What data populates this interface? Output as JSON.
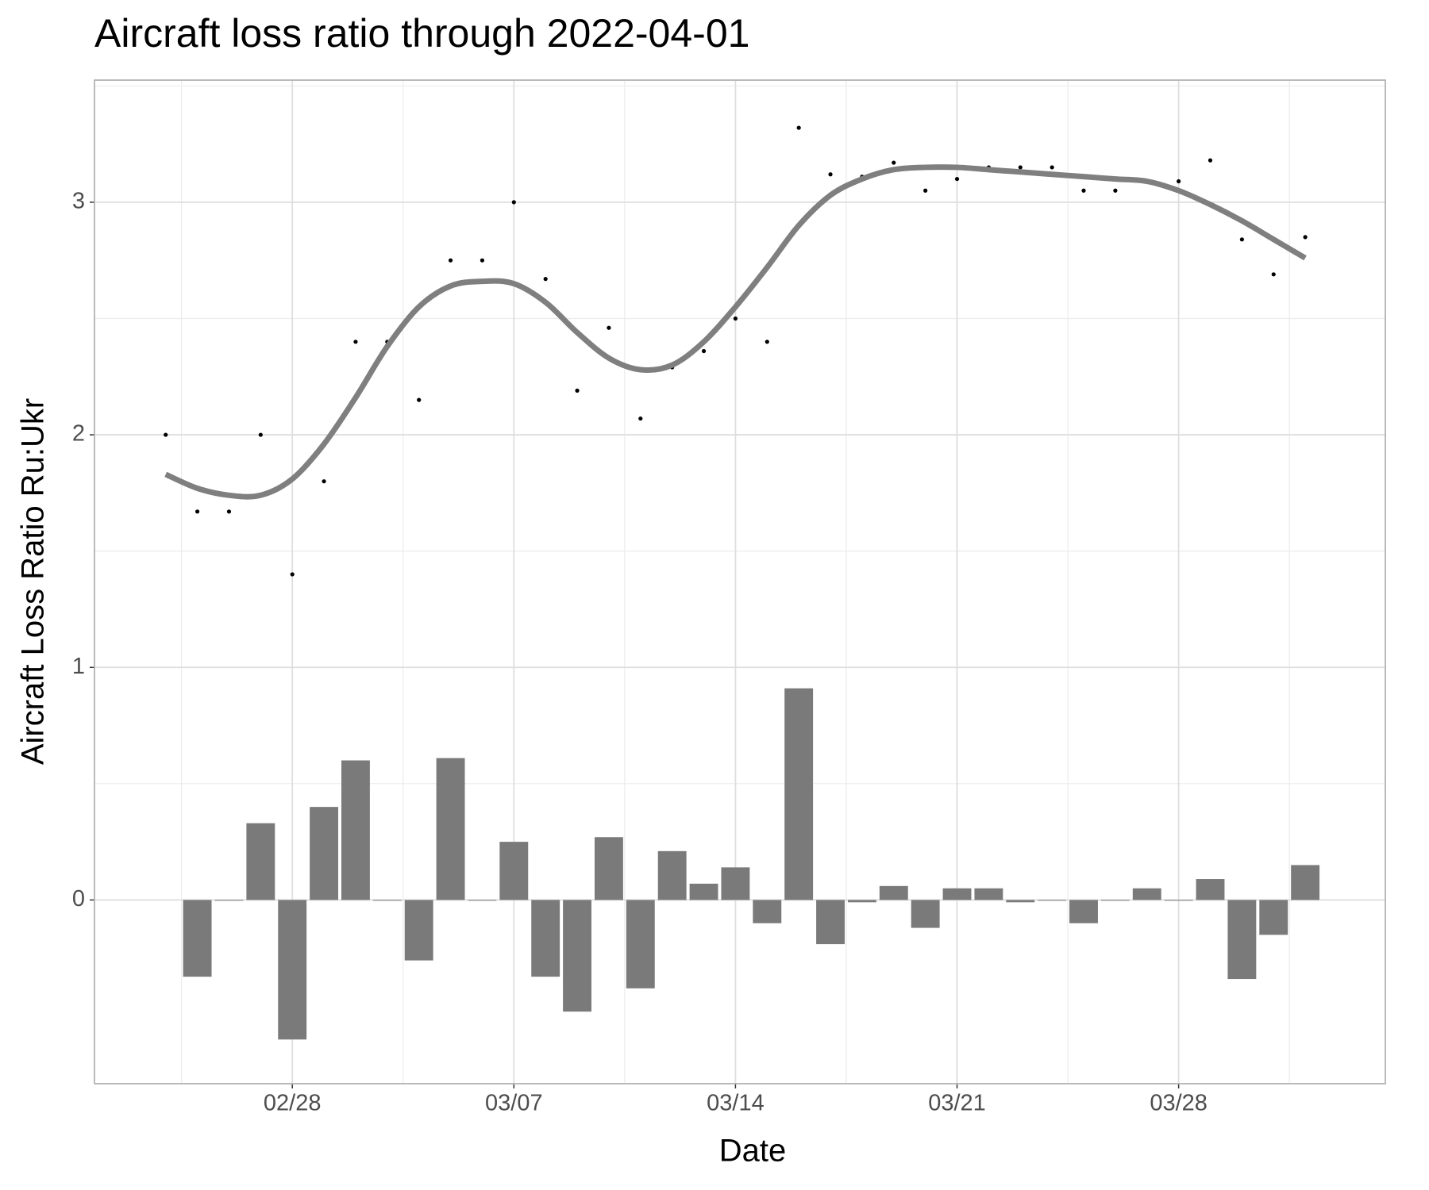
{
  "chart_data": {
    "type": "combo",
    "title": "Aircraft loss ratio through 2022-04-01",
    "x_label": "Date",
    "y_label": "Aircraft Loss Ratio Ru:Ukr",
    "x": [
      "02/24",
      "02/25",
      "02/26",
      "02/27",
      "02/28",
      "03/01",
      "03/02",
      "03/03",
      "03/04",
      "03/05",
      "03/06",
      "03/07",
      "03/08",
      "03/09",
      "03/10",
      "03/11",
      "03/12",
      "03/13",
      "03/14",
      "03/15",
      "03/16",
      "03/17",
      "03/18",
      "03/19",
      "03/20",
      "03/21",
      "03/22",
      "03/23",
      "03/24",
      "03/25",
      "03/26",
      "03/27",
      "03/28",
      "03/29",
      "03/30",
      "03/31",
      "04/01"
    ],
    "xticks": [
      "02/28",
      "03/07",
      "03/14",
      "03/21",
      "03/28"
    ],
    "ylim": [
      -0.79,
      3.525
    ],
    "yticks": [
      0,
      1,
      2,
      3
    ],
    "grid": true,
    "series": [
      {
        "type": "bar",
        "color": "#7a7a7a",
        "values": [
          null,
          -0.33,
          0,
          0.33,
          -0.6,
          0.4,
          0.6,
          0,
          -0.26,
          0.61,
          0,
          0.25,
          -0.33,
          -0.48,
          0.27,
          -0.38,
          0.21,
          0.07,
          0.14,
          -0.1,
          0.91,
          -0.19,
          -0.01,
          0.06,
          -0.12,
          0.05,
          0.05,
          -0.01,
          0,
          -0.1,
          0,
          0.05,
          0,
          0.09,
          -0.34,
          -0.15,
          0.15
        ]
      },
      {
        "type": "scatter",
        "color": "#000000",
        "values": [
          2,
          1.67,
          1.67,
          2,
          1.4,
          1.8,
          2.4,
          2.4,
          2.15,
          2.75,
          2.75,
          3,
          2.67,
          2.19,
          2.46,
          2.07,
          2.29,
          2.36,
          2.5,
          2.4,
          3.32,
          3.12,
          3.11,
          3.17,
          3.05,
          3.1,
          3.15,
          3.15,
          3.15,
          3.05,
          3.05,
          3.09,
          3.09,
          3.18,
          2.84,
          2.69,
          2.85
        ]
      },
      {
        "type": "line",
        "color": "#7f7f7f",
        "values": [
          1.83,
          1.77,
          1.74,
          1.74,
          1.81,
          1.96,
          2.16,
          2.38,
          2.55,
          2.64,
          2.66,
          2.65,
          2.57,
          2.44,
          2.33,
          2.28,
          2.3,
          2.4,
          2.55,
          2.72,
          2.9,
          3.03,
          3.1,
          3.14,
          3.15,
          3.15,
          3.14,
          3.13,
          3.12,
          3.11,
          3.1,
          3.09,
          3.05,
          2.99,
          2.92,
          2.84,
          2.76
        ]
      }
    ]
  }
}
